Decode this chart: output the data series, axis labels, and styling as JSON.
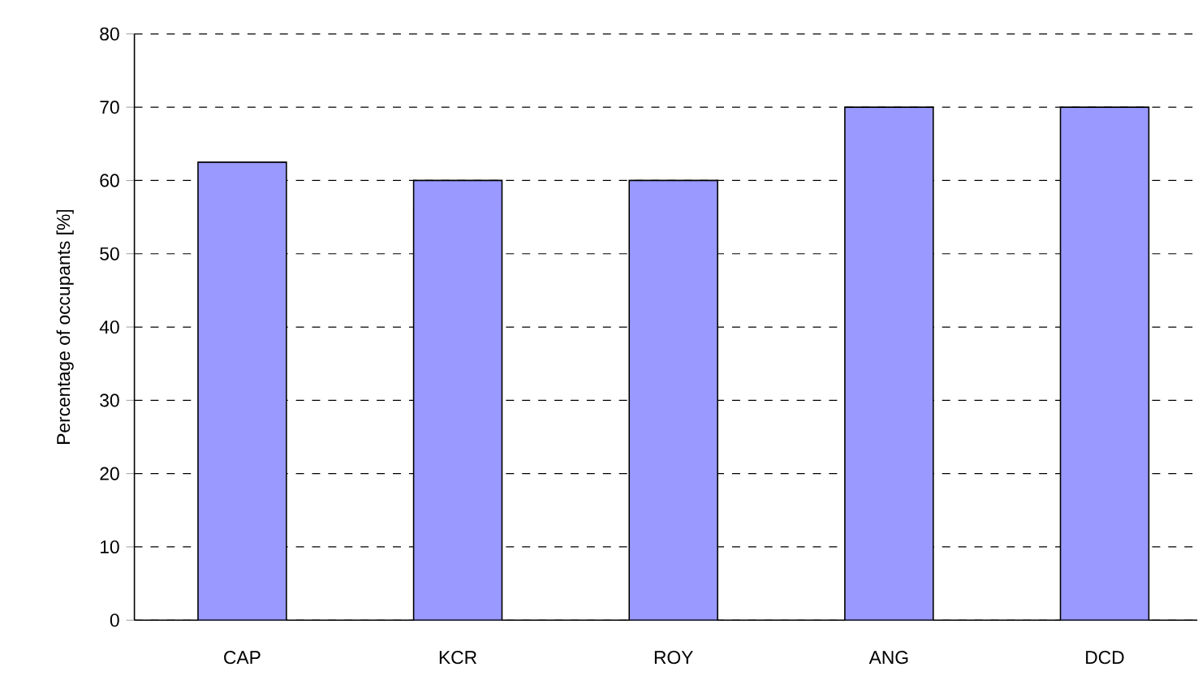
{
  "chart_data": {
    "type": "bar",
    "ylabel": "Percentage of occupants [%]",
    "categories": [
      "CAP",
      "KCR",
      "ROY",
      "ANG",
      "DCD"
    ],
    "values": [
      62.5,
      60,
      60,
      70,
      70
    ],
    "color": "#9999ff",
    "ylim": [
      0,
      80
    ],
    "yticks": [
      0,
      10,
      20,
      30,
      40,
      50,
      60,
      70,
      80
    ],
    "grid": "y"
  }
}
